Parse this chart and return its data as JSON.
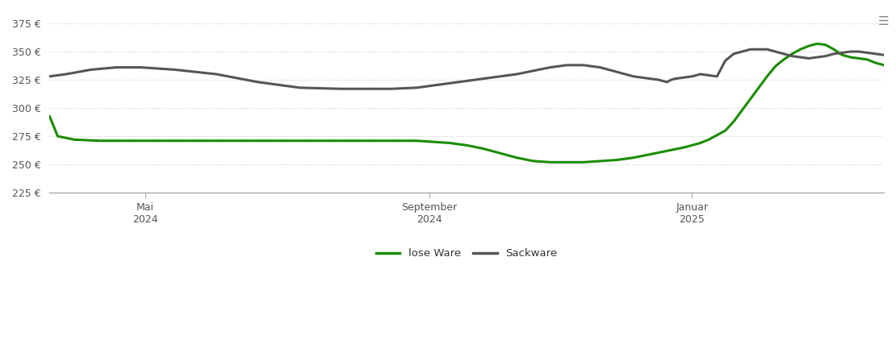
{
  "background_color": "#ffffff",
  "grid_color": "#cccccc",
  "grid_style": "dotted",
  "ylim": [
    225,
    385
  ],
  "yticks": [
    225,
    250,
    275,
    300,
    325,
    350,
    375
  ],
  "xtick_labels": [
    "Mai\n2024",
    "September\n2024",
    "Januar\n2025"
  ],
  "xtick_positions": [
    0.115,
    0.455,
    0.77
  ],
  "lose_ware_color": "#1a8c00",
  "sackware_color": "#555555",
  "lose_ware_label": "lose Ware",
  "sackware_label": "Sackware",
  "line_width": 2.2,
  "lose_ware_x": [
    0.0,
    0.01,
    0.03,
    0.06,
    0.1,
    0.15,
    0.2,
    0.25,
    0.3,
    0.35,
    0.4,
    0.44,
    0.46,
    0.48,
    0.5,
    0.52,
    0.54,
    0.56,
    0.58,
    0.6,
    0.62,
    0.64,
    0.66,
    0.68,
    0.7,
    0.72,
    0.74,
    0.76,
    0.77,
    0.78,
    0.79,
    0.8,
    0.81,
    0.82,
    0.83,
    0.84,
    0.85,
    0.86,
    0.87,
    0.88,
    0.89,
    0.9,
    0.91,
    0.92,
    0.93,
    0.94,
    0.95,
    0.96,
    0.97,
    0.98,
    0.99,
    1.0
  ],
  "lose_ware_y": [
    293,
    275,
    272,
    271,
    271,
    271,
    271,
    271,
    271,
    271,
    271,
    271,
    270,
    269,
    267,
    264,
    260,
    256,
    253,
    252,
    252,
    252,
    253,
    254,
    256,
    259,
    262,
    265,
    267,
    269,
    272,
    276,
    280,
    288,
    298,
    308,
    318,
    328,
    337,
    343,
    348,
    352,
    355,
    357,
    356,
    352,
    347,
    345,
    344,
    343,
    340,
    338
  ],
  "sackware_x": [
    0.0,
    0.02,
    0.05,
    0.08,
    0.11,
    0.15,
    0.2,
    0.25,
    0.3,
    0.35,
    0.38,
    0.41,
    0.44,
    0.46,
    0.48,
    0.5,
    0.52,
    0.54,
    0.56,
    0.58,
    0.6,
    0.62,
    0.64,
    0.65,
    0.66,
    0.67,
    0.68,
    0.69,
    0.7,
    0.71,
    0.72,
    0.73,
    0.735,
    0.74,
    0.745,
    0.75,
    0.76,
    0.77,
    0.78,
    0.79,
    0.8,
    0.81,
    0.82,
    0.84,
    0.86,
    0.87,
    0.88,
    0.89,
    0.9,
    0.91,
    0.92,
    0.93,
    0.94,
    0.95,
    0.96,
    0.97,
    0.98,
    0.99,
    1.0
  ],
  "sackware_y": [
    328,
    330,
    334,
    336,
    336,
    334,
    330,
    323,
    318,
    317,
    317,
    317,
    318,
    320,
    322,
    324,
    326,
    328,
    330,
    333,
    336,
    338,
    338,
    337,
    336,
    334,
    332,
    330,
    328,
    327,
    326,
    325,
    324,
    323,
    325,
    326,
    327,
    328,
    330,
    329,
    328,
    342,
    348,
    352,
    352,
    350,
    348,
    346,
    345,
    344,
    345,
    346,
    348,
    349,
    350,
    350,
    349,
    348,
    347
  ]
}
